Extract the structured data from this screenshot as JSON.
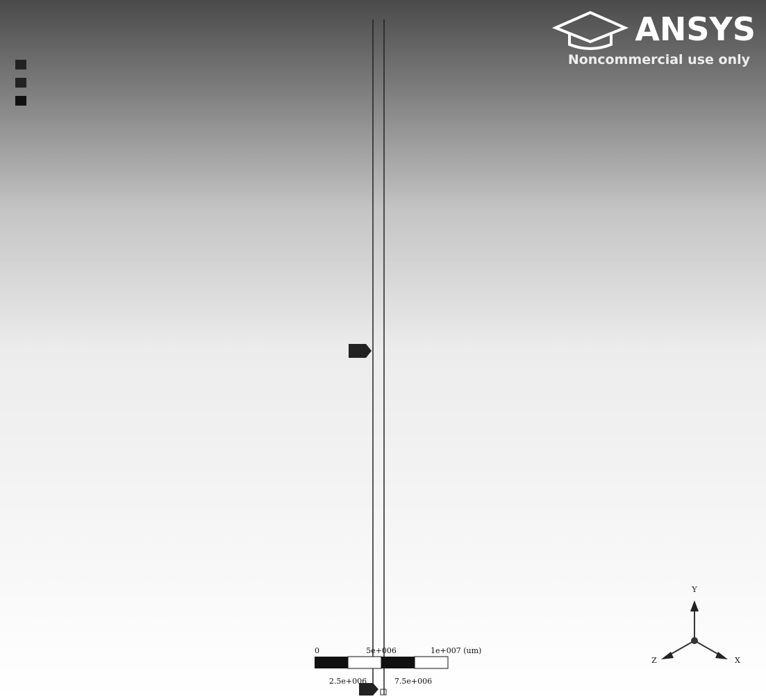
{
  "logo": {
    "brand": "ANSYS",
    "notice": "Noncommercial use only"
  },
  "scale_bar": {
    "top_labels": [
      "0",
      "5e+006",
      "1e+007 (um)"
    ],
    "bottom_labels": [
      "2.5e+006",
      "7.5e+006"
    ]
  },
  "triad": {
    "y": "Y",
    "z": "Z",
    "x": "X"
  }
}
